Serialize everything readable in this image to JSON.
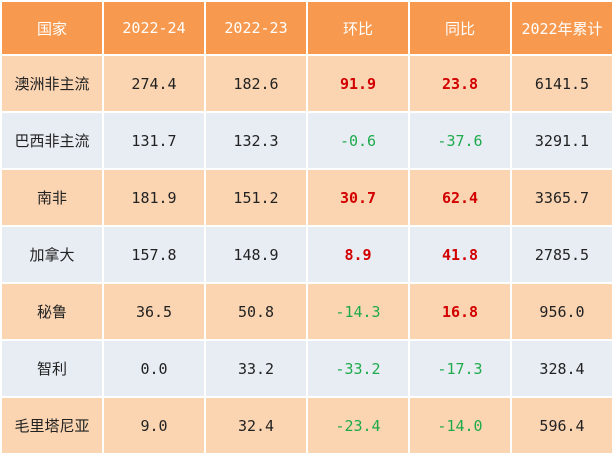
{
  "header": {
    "country": "国家",
    "col1": "2022-24",
    "col2": "2022-23",
    "mom": "环比",
    "yoy": "同比",
    "ytd": "2022年累计"
  },
  "rows": [
    {
      "country": "澳洲非主流",
      "v1": "274.4",
      "v2": "182.6",
      "mom": "91.9",
      "yoy": "23.8",
      "ytd": "6141.5"
    },
    {
      "country": "巴西非主流",
      "v1": "131.7",
      "v2": "132.3",
      "mom": "-0.6",
      "yoy": "-37.6",
      "ytd": "3291.1"
    },
    {
      "country": "南非",
      "v1": "181.9",
      "v2": "151.2",
      "mom": "30.7",
      "yoy": "62.4",
      "ytd": "3365.7"
    },
    {
      "country": "加拿大",
      "v1": "157.8",
      "v2": "148.9",
      "mom": "8.9",
      "yoy": "41.8",
      "ytd": "2785.5"
    },
    {
      "country": "秘鲁",
      "v1": "36.5",
      "v2": "50.8",
      "mom": "-14.3",
      "yoy": "16.8",
      "ytd": "956.0"
    },
    {
      "country": "智利",
      "v1": "0.0",
      "v2": "33.2",
      "mom": "-33.2",
      "yoy": "-17.3",
      "ytd": "328.4"
    },
    {
      "country": "毛里塔尼亚",
      "v1": "9.0",
      "v2": "32.4",
      "mom": "-23.4",
      "yoy": "-14.0",
      "ytd": "596.4"
    }
  ],
  "colors": {
    "header_bg": "#f79a4f",
    "row_odd_bg": "#fbd5b2",
    "row_even_bg": "#e8edf4",
    "positive": "#d20000",
    "negative": "#1eaa4c"
  }
}
